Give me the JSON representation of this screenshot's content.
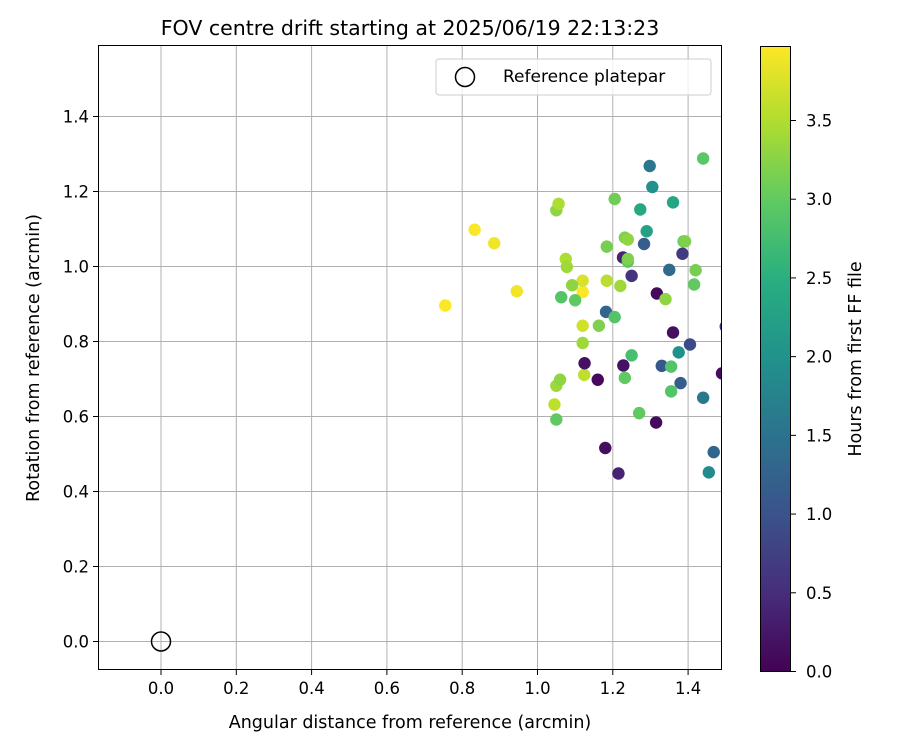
{
  "chart_data": {
    "type": "scatter",
    "title": "FOV centre drift starting at 2025/06/19 22:13:23",
    "xlabel": "Angular distance from reference (arcmin)",
    "ylabel": "Rotation from reference (arcmin)",
    "xlim": [
      -0.17,
      1.49
    ],
    "ylim": [
      -0.075,
      1.58
    ],
    "xticks": [
      "0.0",
      "0.2",
      "0.4",
      "0.6",
      "0.8",
      "1.0",
      "1.2",
      "1.4"
    ],
    "yticks": [
      "0.0",
      "0.2",
      "0.4",
      "0.6",
      "0.8",
      "1.0",
      "1.2",
      "1.4"
    ],
    "grid": true,
    "legend": {
      "placement": "top-right",
      "entries": [
        "Reference platepar"
      ]
    },
    "reference": {
      "x": 0.0,
      "y": 0.0
    },
    "colorbar": {
      "label": "Hours from first FF file",
      "colormap": "viridis",
      "range": [
        0.0,
        3.97
      ],
      "ticks": [
        "0.0",
        "0.5",
        "1.0",
        "1.5",
        "2.0",
        "2.5",
        "3.0",
        "3.5"
      ]
    },
    "points": [
      {
        "x": 0.755,
        "y": 0.896,
        "h": 3.95
      },
      {
        "x": 0.833,
        "y": 1.098,
        "h": 3.95
      },
      {
        "x": 0.885,
        "y": 1.062,
        "h": 3.9
      },
      {
        "x": 0.945,
        "y": 0.934,
        "h": 3.9
      },
      {
        "x": 1.12,
        "y": 0.932,
        "h": 3.95
      },
      {
        "x": 1.12,
        "y": 0.962,
        "h": 3.75
      },
      {
        "x": 1.12,
        "y": 0.842,
        "h": 3.7
      },
      {
        "x": 1.045,
        "y": 0.632,
        "h": 3.6
      },
      {
        "x": 1.05,
        "y": 0.682,
        "h": 3.4
      },
      {
        "x": 1.06,
        "y": 0.698,
        "h": 3.3
      },
      {
        "x": 1.05,
        "y": 1.15,
        "h": 3.3
      },
      {
        "x": 1.056,
        "y": 1.167,
        "h": 3.5
      },
      {
        "x": 1.075,
        "y": 1.02,
        "h": 3.5
      },
      {
        "x": 1.078,
        "y": 0.999,
        "h": 3.4
      },
      {
        "x": 1.092,
        "y": 0.95,
        "h": 3.3
      },
      {
        "x": 1.063,
        "y": 0.918,
        "h": 2.9
      },
      {
        "x": 1.1,
        "y": 0.91,
        "h": 3.0
      },
      {
        "x": 1.05,
        "y": 0.592,
        "h": 3.0
      },
      {
        "x": 1.12,
        "y": 0.796,
        "h": 3.4
      },
      {
        "x": 1.124,
        "y": 0.711,
        "h": 3.6
      },
      {
        "x": 1.125,
        "y": 0.742,
        "h": 0.2
      },
      {
        "x": 1.16,
        "y": 0.698,
        "h": 0.1
      },
      {
        "x": 1.163,
        "y": 0.842,
        "h": 3.2
      },
      {
        "x": 1.18,
        "y": 0.516,
        "h": 0.15
      },
      {
        "x": 1.184,
        "y": 0.962,
        "h": 3.55
      },
      {
        "x": 1.184,
        "y": 1.053,
        "h": 3.15
      },
      {
        "x": 1.182,
        "y": 0.879,
        "h": 1.3
      },
      {
        "x": 1.205,
        "y": 0.865,
        "h": 2.9
      },
      {
        "x": 1.205,
        "y": 1.18,
        "h": 3.1
      },
      {
        "x": 1.215,
        "y": 0.448,
        "h": 0.4
      },
      {
        "x": 1.22,
        "y": 0.948,
        "h": 3.4
      },
      {
        "x": 1.227,
        "y": 1.024,
        "h": 0.4
      },
      {
        "x": 1.228,
        "y": 0.736,
        "h": 0.2
      },
      {
        "x": 1.232,
        "y": 1.077,
        "h": 3.2
      },
      {
        "x": 1.232,
        "y": 0.703,
        "h": 3.0
      },
      {
        "x": 1.24,
        "y": 1.072,
        "h": 3.3
      },
      {
        "x": 1.24,
        "y": 1.013,
        "h": 2.95
      },
      {
        "x": 1.24,
        "y": 1.02,
        "h": 3.2
      },
      {
        "x": 1.25,
        "y": 0.975,
        "h": 0.6
      },
      {
        "x": 1.25,
        "y": 0.763,
        "h": 2.8
      },
      {
        "x": 1.27,
        "y": 0.609,
        "h": 3.0
      },
      {
        "x": 1.273,
        "y": 1.152,
        "h": 2.4
      },
      {
        "x": 1.283,
        "y": 1.06,
        "h": 1.2
      },
      {
        "x": 1.29,
        "y": 1.094,
        "h": 2.3
      },
      {
        "x": 1.298,
        "y": 1.268,
        "h": 1.6
      },
      {
        "x": 1.305,
        "y": 1.212,
        "h": 2.0
      },
      {
        "x": 1.315,
        "y": 0.584,
        "h": 0.1
      },
      {
        "x": 1.317,
        "y": 0.928,
        "h": 0.1
      },
      {
        "x": 1.33,
        "y": 0.735,
        "h": 1.1
      },
      {
        "x": 1.34,
        "y": 0.913,
        "h": 3.3
      },
      {
        "x": 1.35,
        "y": 0.991,
        "h": 1.4
      },
      {
        "x": 1.355,
        "y": 0.733,
        "h": 2.9
      },
      {
        "x": 1.355,
        "y": 0.667,
        "h": 2.9
      },
      {
        "x": 1.36,
        "y": 1.171,
        "h": 2.35
      },
      {
        "x": 1.36,
        "y": 0.824,
        "h": 0.15
      },
      {
        "x": 1.375,
        "y": 0.771,
        "h": 2.0
      },
      {
        "x": 1.38,
        "y": 0.689,
        "h": 1.2
      },
      {
        "x": 1.385,
        "y": 1.034,
        "h": 0.7
      },
      {
        "x": 1.388,
        "y": 1.067,
        "h": 3.05
      },
      {
        "x": 1.392,
        "y": 1.067,
        "h": 3.2
      },
      {
        "x": 1.405,
        "y": 0.792,
        "h": 0.9
      },
      {
        "x": 1.416,
        "y": 0.952,
        "h": 3.0
      },
      {
        "x": 1.42,
        "y": 0.99,
        "h": 3.15
      },
      {
        "x": 1.44,
        "y": 1.288,
        "h": 2.95
      },
      {
        "x": 1.44,
        "y": 0.65,
        "h": 1.6
      },
      {
        "x": 1.455,
        "y": 0.451,
        "h": 1.9
      },
      {
        "x": 1.468,
        "y": 0.505,
        "h": 1.3
      },
      {
        "x": 1.49,
        "y": 0.715,
        "h": 0.15
      },
      {
        "x": 1.5,
        "y": 0.84,
        "h": 0.6
      }
    ]
  }
}
